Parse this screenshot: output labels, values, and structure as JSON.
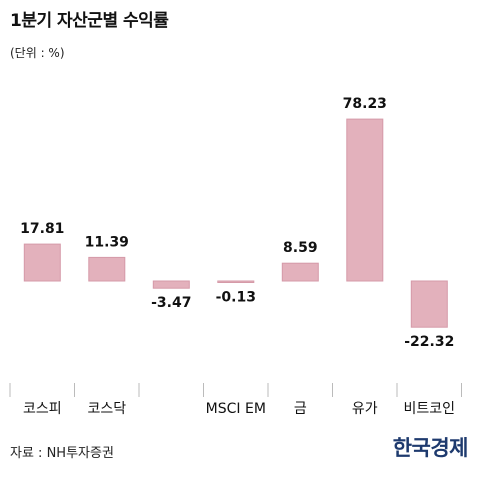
{
  "title": "1분기 자산군별 수익률",
  "unit_note": "(단위 : %)",
  "source": "자료 : NH투자증권",
  "brand": "한국경제",
  "colors": {
    "bar_fill": "#e3b1bc",
    "bar_stroke": "#d59aa8",
    "axis_tick": "#bbbbbb",
    "text": "#111111"
  },
  "chart_data": {
    "type": "bar",
    "categories": [
      "코스피",
      "코스닥",
      "",
      "MSCI EM",
      "금",
      "유가",
      "비트코인"
    ],
    "values": [
      17.81,
      11.39,
      -3.47,
      -0.13,
      8.59,
      78.23,
      -22.32
    ],
    "value_labels": [
      "17.81",
      "11.39",
      "-3.47",
      "-0.13",
      "8.59",
      "78.23",
      "-22.32"
    ],
    "title": "1분기 자산군별 수익률",
    "xlabel": "",
    "ylabel": "",
    "grid": false,
    "legend": "none"
  }
}
